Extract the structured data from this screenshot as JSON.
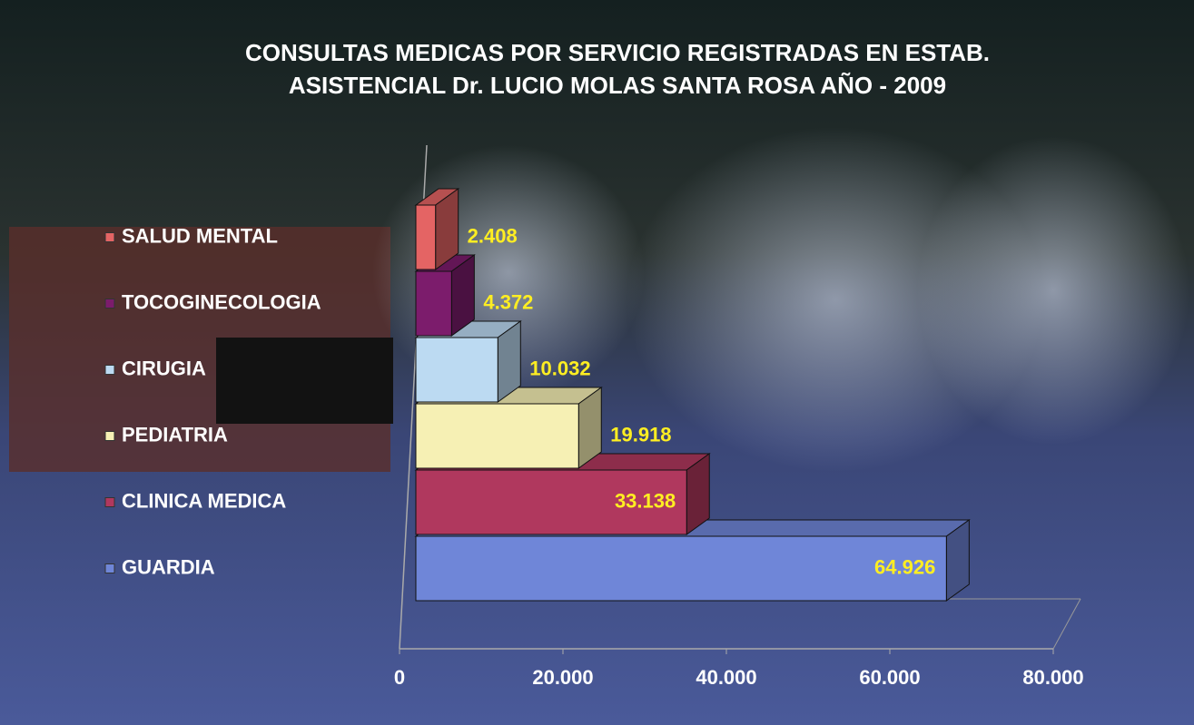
{
  "chart_data": {
    "type": "bar3d-horizontal",
    "title": [
      "CONSULTAS MEDICAS POR SERVICIO REGISTRADAS EN ESTAB.",
      "ASISTENCIAL Dr. LUCIO MOLAS SANTA ROSA AÑO - 2009"
    ],
    "categories": [
      "GUARDIA",
      "CLINICA MEDICA",
      "PEDIATRIA",
      "CIRUGIA",
      "TOCOGINECOLOGIA",
      "SALUD MENTAL"
    ],
    "values": [
      64926,
      33138,
      19918,
      10032,
      4372,
      2408
    ],
    "value_labels": [
      "64.926",
      "33.138",
      "19.918",
      "10.032",
      "4.372",
      "2.408"
    ],
    "colors": [
      "#6f86d8",
      "#b0385e",
      "#f6f0b4",
      "#bcdaf2",
      "#7c1c6c",
      "#e46464"
    ],
    "xlim": [
      0,
      80000
    ],
    "xticks": [
      0,
      {
        "value": 20000,
        "label": "20.000"
      },
      {
        "value": 40000,
        "label": "40.000"
      },
      {
        "value": 60000,
        "label": "60.000"
      },
      {
        "value": 80000,
        "label": "80.000"
      }
    ],
    "grid": false
  }
}
